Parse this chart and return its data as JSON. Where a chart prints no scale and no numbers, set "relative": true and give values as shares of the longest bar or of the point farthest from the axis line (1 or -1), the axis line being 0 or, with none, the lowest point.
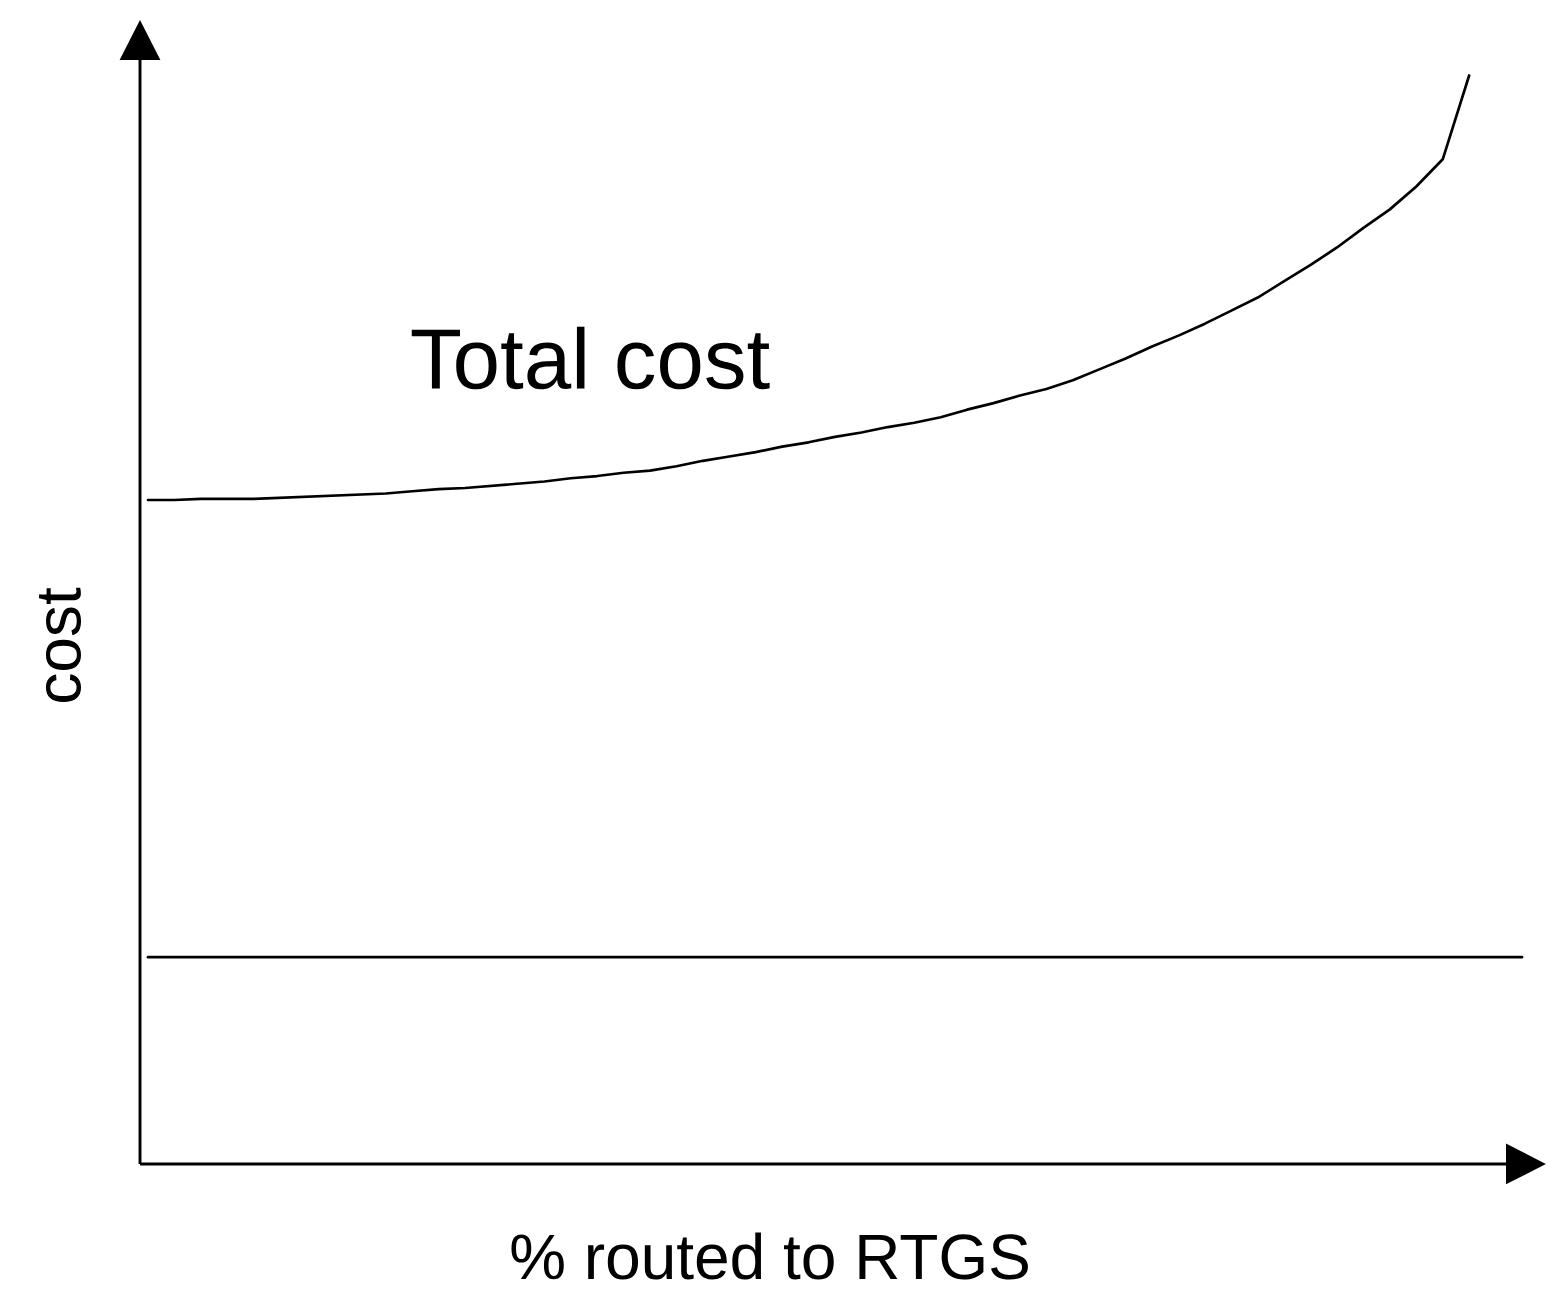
{
  "chart_data": {
    "type": "line",
    "xlabel": "% routed to RTGS",
    "ylabel": "cost",
    "relative": true,
    "tick_labels": false,
    "line_style": "solid",
    "categories": [
      null,
      null,
      null,
      null,
      null,
      null,
      null,
      null,
      null,
      null,
      null,
      null,
      null,
      null,
      null,
      null,
      null,
      null,
      null,
      null,
      null,
      null,
      null,
      null,
      null,
      null,
      null,
      null,
      null,
      null,
      null,
      null,
      null,
      null,
      null,
      null,
      null,
      null,
      null,
      null,
      null,
      null,
      null,
      null,
      null,
      null,
      null,
      null,
      null,
      null,
      null,
      null,
      null
    ],
    "series": [
      {
        "name": "Total cost",
        "color": "#000000",
        "values": [
          0.61,
          0.61,
          0.611,
          0.611,
          0.611,
          0.612,
          0.613,
          0.614,
          0.615,
          0.616,
          0.618,
          0.62,
          0.621,
          0.623,
          0.625,
          0.627,
          0.63,
          0.632,
          0.635,
          0.637,
          0.641,
          0.646,
          0.65,
          0.654,
          0.659,
          0.663,
          0.668,
          0.672,
          0.677,
          0.681,
          0.686,
          0.693,
          0.699,
          0.706,
          0.712,
          0.72,
          0.73,
          0.74,
          0.751,
          0.761,
          0.772,
          0.784,
          0.796,
          0.811,
          0.826,
          0.842,
          0.86,
          0.877,
          0.898,
          0.923,
          1,
          null,
          null
        ]
      },
      {
        "color": "#000000",
        "values": [
          0.19,
          0.19,
          0.19,
          0.19,
          0.19,
          0.19,
          0.19,
          0.19,
          0.19,
          0.19,
          0.19,
          0.19,
          0.19,
          0.19,
          0.19,
          0.19,
          0.19,
          0.19,
          0.19,
          0.19,
          0.19,
          0.19,
          0.19,
          0.19,
          0.19,
          0.19,
          0.19,
          0.19,
          0.19,
          0.19,
          0.19,
          0.19,
          0.19,
          0.19,
          0.19,
          0.19,
          0.19,
          0.19,
          0.19,
          0.19,
          0.19,
          0.19,
          0.19,
          0.19,
          0.19,
          0.19,
          0.19,
          0.19,
          0.19,
          0.19,
          0.19,
          0.19,
          0.19
        ]
      }
    ]
  }
}
